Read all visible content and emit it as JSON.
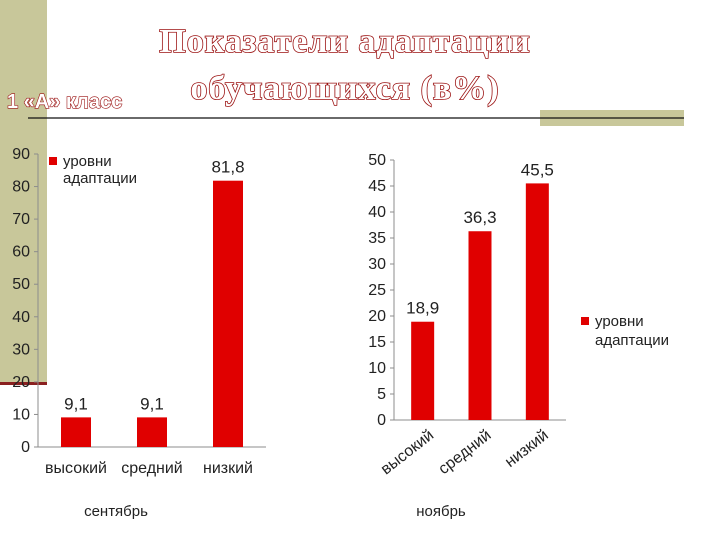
{
  "slide": {
    "title_line1": "Показатели адаптации",
    "title_line2": "обучающихся (в%)",
    "class_label": "1 «А» класс",
    "accent_color": "#d40000",
    "sidebar_color": "#c8c79a"
  },
  "chart_data": [
    {
      "type": "bar",
      "categories": [
        "высокий",
        "средний",
        "низкий"
      ],
      "series": [
        {
          "name": "уровни адаптации",
          "values": [
            9.1,
            9.1,
            81.8
          ]
        }
      ],
      "value_labels": [
        "9,1",
        "9,1",
        "81,8"
      ],
      "ylim": [
        0,
        90
      ],
      "yticks": [
        0,
        10,
        20,
        30,
        40,
        50,
        60,
        70,
        80,
        90
      ],
      "legend_text": [
        "уровни",
        "адаптации"
      ],
      "legend_position": "top-left",
      "caption": "сентябрь",
      "xlabel": "",
      "ylabel": "",
      "grid": false,
      "color": "#e00000"
    },
    {
      "type": "bar",
      "categories": [
        "высокий",
        "средний",
        "низкий"
      ],
      "series": [
        {
          "name": "уровни адаптации",
          "values": [
            18.9,
            36.3,
            45.5
          ]
        }
      ],
      "value_labels": [
        "18,9",
        "36,3",
        "45,5"
      ],
      "ylim": [
        0,
        50
      ],
      "yticks": [
        0,
        5,
        10,
        15,
        20,
        25,
        30,
        35,
        40,
        45,
        50
      ],
      "legend_text": [
        "уровни",
        "адаптации"
      ],
      "legend_position": "right",
      "caption": "ноябрь",
      "xlabel": "",
      "ylabel": "",
      "grid": false,
      "color": "#e00000"
    }
  ]
}
